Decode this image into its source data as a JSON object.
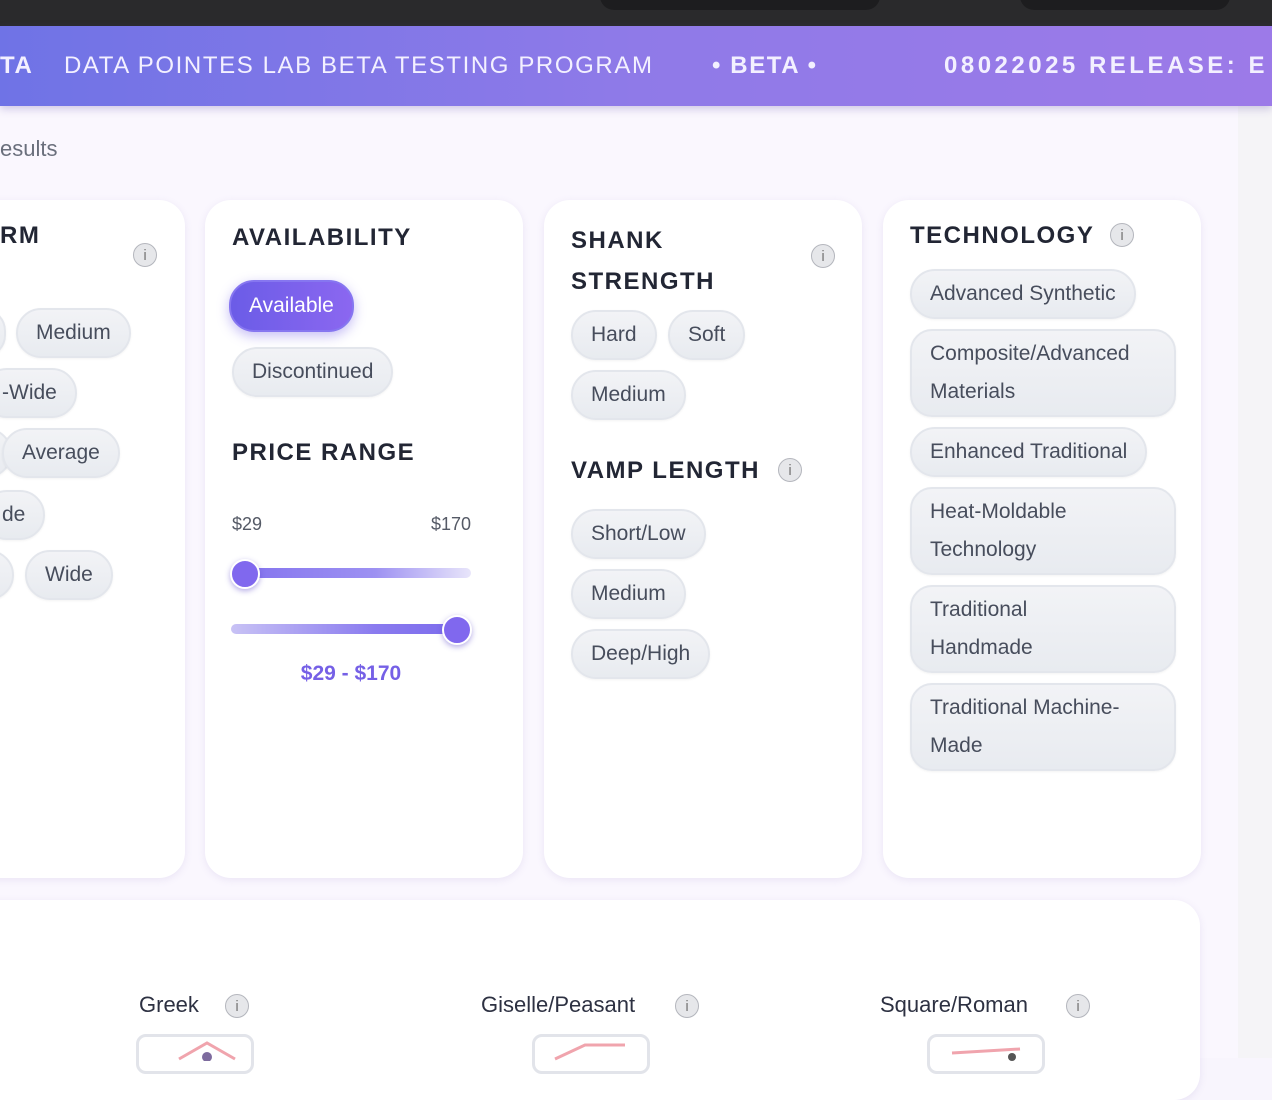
{
  "banner": {
    "items": [
      "TA",
      "DATA POINTES LAB BETA TESTING PROGRAM",
      "• BETA •",
      "08022025 RELEASE: E"
    ]
  },
  "header": {
    "subtitle": "esults"
  },
  "info_icon": "i",
  "filters": [
    {
      "title": "RM",
      "options": [
        "Medium",
        "-Wide",
        "Average",
        "de",
        "Wide"
      ]
    },
    {
      "title": "AVAILABILITY",
      "options": [
        "Available",
        "Discontinued"
      ],
      "selected": "Available"
    },
    {
      "title": "PRICE RANGE",
      "min_label": "$29",
      "max_label": "$170",
      "range_label": "$29 - $170"
    },
    {
      "title": "SHANK STRENGTH",
      "options": [
        "Hard",
        "Soft",
        "Medium"
      ]
    },
    {
      "title": "VAMP LENGTH",
      "options": [
        "Short/Low",
        "Medium",
        "Deep/High"
      ]
    },
    {
      "title": "TECHNOLOGY",
      "options": [
        "Advanced Synthetic",
        "Composite/Advanced Materials",
        "Enhanced Traditional",
        "Heat-Moldable Technology",
        "Traditional Handmade",
        "Traditional Machine-Made"
      ]
    }
  ],
  "box_shapes": [
    "Greek",
    "Giselle/Peasant",
    "Square/Roman"
  ]
}
